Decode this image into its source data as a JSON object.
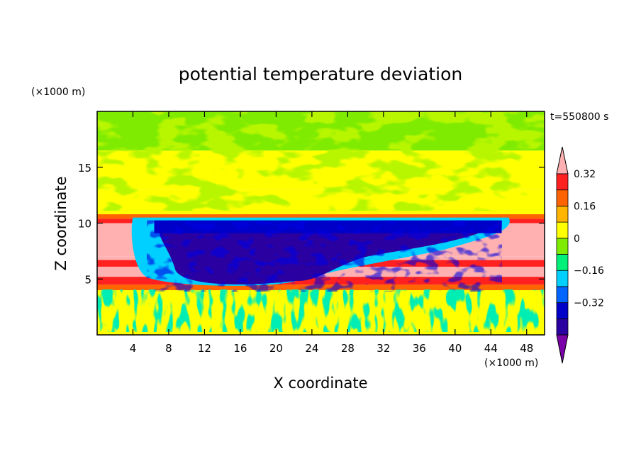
{
  "chart_data": {
    "type": "heatmap",
    "title": "potential temperature deviation",
    "xlabel": "X coordinate",
    "ylabel": "Z coordinate",
    "x_unit": "(×1000 m)",
    "y_unit": "(×1000 m)",
    "time_label": "t=550800 s",
    "xlim": [
      0,
      50
    ],
    "ylim": [
      0,
      20
    ],
    "x_ticks": [
      4,
      8,
      12,
      16,
      20,
      24,
      28,
      32,
      36,
      40,
      44,
      48
    ],
    "y_ticks": [
      5,
      10,
      15
    ],
    "colorbar": {
      "levels": [
        -0.48,
        -0.4,
        -0.32,
        -0.24,
        -0.16,
        -0.08,
        0,
        0.08,
        0.16,
        0.24,
        0.32,
        0.4
      ],
      "labeled_levels": [
        -0.32,
        -0.16,
        0,
        0.16,
        0.32
      ],
      "tick_labels": [
        "0.32",
        "0.16",
        "0",
        "−0.16",
        "−0.32"
      ],
      "colors": [
        "#7a00a8",
        "#2b00a0",
        "#0000c8",
        "#0064ff",
        "#00d0ff",
        "#00f07a",
        "#7eeb00",
        "#ffff00",
        "#ffb400",
        "#ff6400",
        "#ff2020",
        "#ffb0b0"
      ],
      "extend": "both"
    },
    "bands": [
      {
        "z": [
          0.0,
          0.4
        ],
        "value": 0.04
      },
      {
        "z": [
          0.4,
          4.0
        ],
        "value": 0.04
      },
      {
        "z": [
          4.0,
          4.5
        ],
        "value": 0.2
      },
      {
        "z": [
          4.5,
          5.2
        ],
        "value": 0.28
      },
      {
        "z": [
          5.2,
          6.1
        ],
        "value": 0.36
      },
      {
        "z": [
          6.1,
          6.7
        ],
        "value": 0.3
      },
      {
        "z": [
          6.7,
          7.0
        ],
        "value": 0.44
      },
      {
        "z": [
          7.0,
          7.4
        ],
        "value": 0.36
      },
      {
        "z": [
          7.4,
          10.0
        ],
        "value": 0.44
      },
      {
        "z": [
          10.0,
          10.4
        ],
        "value": 0.28
      },
      {
        "z": [
          10.4,
          10.8
        ],
        "value": 0.2
      },
      {
        "z": [
          10.8,
          13.0
        ],
        "value": 0.04
      },
      {
        "z": [
          13.0,
          16.5
        ],
        "value": 0.04
      },
      {
        "z": [
          16.5,
          20.0
        ],
        "value": -0.04
      }
    ],
    "cold_core": {
      "x": [
        4,
        46
      ],
      "z": [
        4.2,
        10.5
      ],
      "value": -0.44
    }
  }
}
